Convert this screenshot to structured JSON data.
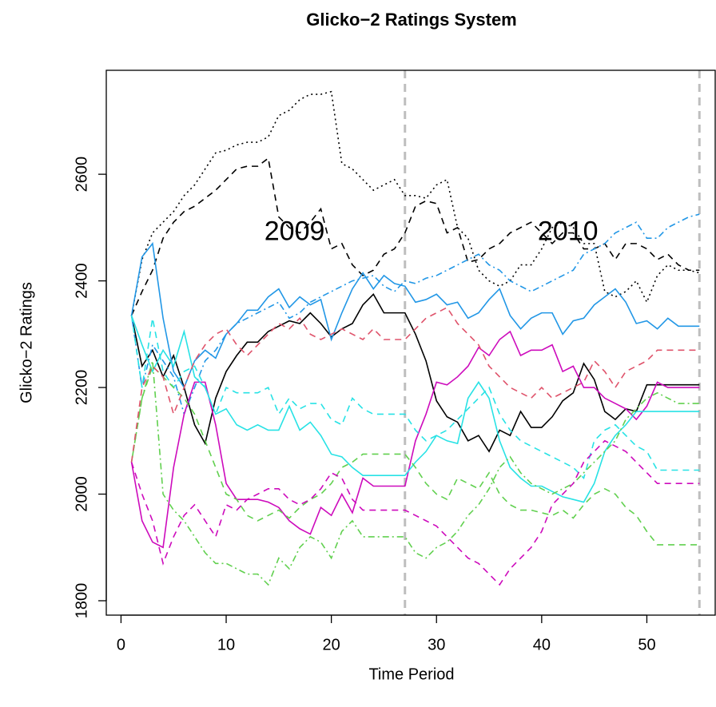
{
  "chart_data": {
    "type": "line",
    "title": "Glicko−2  Ratings System",
    "x_label": "Time Period",
    "y_label": "Glicko−2  Ratings",
    "x": [
      1,
      2,
      3,
      4,
      5,
      6,
      7,
      8,
      9,
      10,
      11,
      12,
      13,
      14,
      15,
      16,
      17,
      18,
      19,
      20,
      21,
      22,
      23,
      24,
      25,
      26,
      27,
      28,
      29,
      30,
      31,
      32,
      33,
      34,
      35,
      36,
      37,
      38,
      39,
      40,
      41,
      42,
      43,
      44,
      45,
      46,
      47,
      48,
      49,
      50,
      51,
      52,
      53,
      54,
      55
    ],
    "xlim": [
      -1.4,
      56.5
    ],
    "xticks": [
      0,
      10,
      20,
      30,
      40,
      50
    ],
    "ylim": [
      1773,
      2795
    ],
    "yticks": [
      1800,
      2000,
      2200,
      2400,
      2600
    ],
    "vlines": [
      27,
      55
    ],
    "vline_color": "#bebebe",
    "annotations": [
      {
        "text": "2009",
        "x": 16.5,
        "y": 2490
      },
      {
        "text": "2010",
        "x": 42.5,
        "y": 2490
      }
    ],
    "series": [
      {
        "color": "#000000",
        "dash": "solid",
        "values": [
          2335,
          2240,
          2270,
          2220,
          2260,
          2200,
          2130,
          2095,
          2180,
          2230,
          2260,
          2285,
          2285,
          2305,
          2315,
          2325,
          2320,
          2340,
          2320,
          2295,
          2310,
          2320,
          2355,
          2375,
          2340,
          2340,
          2340,
          2300,
          2250,
          2175,
          2145,
          2135,
          2100,
          2110,
          2080,
          2120,
          2110,
          2155,
          2125,
          2125,
          2145,
          2175,
          2190,
          2245,
          2215,
          2155,
          2140,
          2160,
          2155,
          2205,
          2205,
          2205,
          2205,
          2205,
          2205
        ]
      },
      {
        "color": "#000000",
        "dash": "dashed",
        "values": [
          2335,
          2380,
          2420,
          2480,
          2510,
          2530,
          2540,
          2555,
          2570,
          2590,
          2610,
          2615,
          2615,
          2630,
          2520,
          2500,
          2490,
          2510,
          2535,
          2460,
          2470,
          2430,
          2410,
          2420,
          2450,
          2460,
          2490,
          2540,
          2550,
          2545,
          2490,
          2500,
          2435,
          2440,
          2460,
          2470,
          2490,
          2500,
          2510,
          2490,
          2470,
          2490,
          2490,
          2460,
          2460,
          2470,
          2440,
          2470,
          2470,
          2460,
          2440,
          2450,
          2430,
          2420,
          2420
        ]
      },
      {
        "color": "#000000",
        "dash": "dotted",
        "values": [
          2335,
          2440,
          2490,
          2510,
          2530,
          2560,
          2580,
          2610,
          2640,
          2645,
          2655,
          2660,
          2660,
          2670,
          2710,
          2720,
          2740,
          2750,
          2750,
          2755,
          2620,
          2610,
          2590,
          2570,
          2580,
          2590,
          2560,
          2560,
          2555,
          2580,
          2590,
          2500,
          2480,
          2420,
          2400,
          2390,
          2400,
          2430,
          2430,
          2460,
          2500,
          2510,
          2500,
          2470,
          2470,
          2380,
          2370,
          2380,
          2400,
          2360,
          2410,
          2430,
          2420,
          2420,
          2415
        ]
      },
      {
        "color": "#2297E6",
        "dash": "solid",
        "values": [
          2335,
          2445,
          2470,
          2330,
          2230,
          2200,
          2250,
          2270,
          2255,
          2300,
          2320,
          2345,
          2345,
          2370,
          2385,
          2350,
          2370,
          2355,
          2365,
          2290,
          2340,
          2385,
          2415,
          2385,
          2410,
          2395,
          2390,
          2360,
          2365,
          2375,
          2355,
          2360,
          2330,
          2340,
          2365,
          2385,
          2335,
          2310,
          2330,
          2340,
          2340,
          2300,
          2325,
          2330,
          2355,
          2370,
          2385,
          2360,
          2320,
          2325,
          2310,
          2330,
          2315,
          2315,
          2315
        ]
      },
      {
        "color": "#2297E6",
        "dash": "dashdot",
        "values": [
          2335,
          2200,
          2280,
          2250,
          2220,
          2150,
          2200,
          2250,
          2270,
          2300,
          2320,
          2330,
          2340,
          2350,
          2360,
          2330,
          2340,
          2360,
          2370,
          2380,
          2390,
          2400,
          2405,
          2410,
          2390,
          2380,
          2400,
          2395,
          2405,
          2410,
          2420,
          2430,
          2440,
          2450,
          2430,
          2420,
          2400,
          2390,
          2380,
          2390,
          2400,
          2410,
          2420,
          2450,
          2460,
          2470,
          2490,
          2500,
          2510,
          2480,
          2480,
          2500,
          2510,
          2520,
          2525
        ]
      },
      {
        "color": "#CD0BBC",
        "dash": "solid",
        "values": [
          2060,
          1950,
          1910,
          1900,
          2050,
          2150,
          2210,
          2210,
          2130,
          2020,
          1990,
          1990,
          1990,
          1985,
          1975,
          1950,
          1935,
          1925,
          1975,
          1960,
          2000,
          1965,
          2030,
          2015,
          2015,
          2015,
          2015,
          2100,
          2150,
          2210,
          2205,
          2220,
          2240,
          2275,
          2260,
          2290,
          2305,
          2260,
          2270,
          2270,
          2280,
          2230,
          2240,
          2200,
          2200,
          2180,
          2170,
          2160,
          2140,
          2165,
          2210,
          2200,
          2200,
          2200,
          2200
        ]
      },
      {
        "color": "#28E2E5",
        "dash": "solid",
        "values": [
          2335,
          2280,
          2230,
          2270,
          2240,
          2305,
          2220,
          2200,
          2150,
          2160,
          2130,
          2120,
          2130,
          2120,
          2120,
          2165,
          2120,
          2135,
          2110,
          2075,
          2070,
          2050,
          2035,
          2035,
          2035,
          2035,
          2035,
          2060,
          2080,
          2110,
          2100,
          2095,
          2180,
          2210,
          2180,
          2100,
          2050,
          2030,
          2015,
          2015,
          2005,
          1995,
          1990,
          1985,
          2020,
          2080,
          2110,
          2130,
          2155,
          2155,
          2155,
          2155,
          2155,
          2155,
          2155
        ]
      },
      {
        "color": "#28E2E5",
        "dash": "dashed",
        "values": [
          2335,
          2200,
          2330,
          2230,
          2200,
          2230,
          2240,
          2200,
          2150,
          2200,
          2190,
          2190,
          2190,
          2200,
          2150,
          2180,
          2160,
          2170,
          2170,
          2140,
          2130,
          2180,
          2160,
          2150,
          2150,
          2150,
          2150,
          2120,
          2100,
          2110,
          2120,
          2140,
          2160,
          2180,
          2200,
          2150,
          2120,
          2100,
          2090,
          2080,
          2070,
          2060,
          2050,
          2030,
          2100,
          2120,
          2130,
          2110,
          2090,
          2080,
          2045,
          2045,
          2045,
          2045,
          2045
        ]
      },
      {
        "color": "#61D04F",
        "dash": "dashed",
        "values": [
          2060,
          2180,
          2240,
          2220,
          2200,
          2180,
          2150,
          2100,
          2050,
          2000,
          1990,
          1960,
          1950,
          1960,
          1970,
          1955,
          1975,
          1990,
          2000,
          2020,
          2050,
          2060,
          2075,
          2075,
          2075,
          2075,
          2075,
          2050,
          2020,
          2000,
          1990,
          2030,
          2020,
          2010,
          2040,
          2000,
          1980,
          1970,
          1970,
          1965,
          1960,
          1970,
          1955,
          1980,
          2000,
          2010,
          2000,
          1975,
          1960,
          1930,
          1905,
          1905,
          1905,
          1905,
          1905
        ]
      },
      {
        "color": "#61D04F",
        "dash": "dashdot",
        "values": [
          2060,
          2180,
          2250,
          2000,
          1970,
          1950,
          1920,
          1890,
          1870,
          1870,
          1860,
          1850,
          1850,
          1830,
          1880,
          1860,
          1900,
          1920,
          1910,
          1880,
          1930,
          1950,
          1920,
          1920,
          1920,
          1920,
          1920,
          1890,
          1880,
          1900,
          1910,
          1930,
          1960,
          1980,
          2010,
          2050,
          2070,
          2040,
          2020,
          2010,
          2000,
          2010,
          2020,
          2040,
          2060,
          2080,
          2100,
          2140,
          2160,
          2180,
          2190,
          2180,
          2170,
          2170,
          2170
        ]
      },
      {
        "color": "#DF536B",
        "dash": "dashed",
        "values": [
          2060,
          2200,
          2240,
          2220,
          2150,
          2200,
          2250,
          2280,
          2300,
          2310,
          2280,
          2260,
          2280,
          2300,
          2320,
          2310,
          2330,
          2300,
          2290,
          2300,
          2310,
          2300,
          2290,
          2310,
          2290,
          2290,
          2290,
          2310,
          2330,
          2340,
          2350,
          2320,
          2300,
          2280,
          2240,
          2220,
          2200,
          2190,
          2180,
          2200,
          2180,
          2190,
          2200,
          2210,
          2250,
          2230,
          2200,
          2230,
          2240,
          2250,
          2270,
          2270,
          2270,
          2270,
          2270
        ]
      },
      {
        "color": "#CD0BBC",
        "dash": "dashed",
        "values": [
          2060,
          2000,
          1950,
          1870,
          1920,
          1960,
          1980,
          1950,
          1920,
          1980,
          1970,
          1990,
          2000,
          2010,
          2010,
          1990,
          1980,
          1990,
          2010,
          2040,
          2030,
          1990,
          1970,
          1970,
          1970,
          1970,
          1970,
          1960,
          1950,
          1940,
          1920,
          1900,
          1880,
          1870,
          1850,
          1830,
          1860,
          1880,
          1900,
          1930,
          1980,
          2000,
          2020,
          2060,
          2080,
          2100,
          2090,
          2080,
          2060,
          2040,
          2020,
          2020,
          2020,
          2020,
          2020
        ]
      }
    ]
  }
}
